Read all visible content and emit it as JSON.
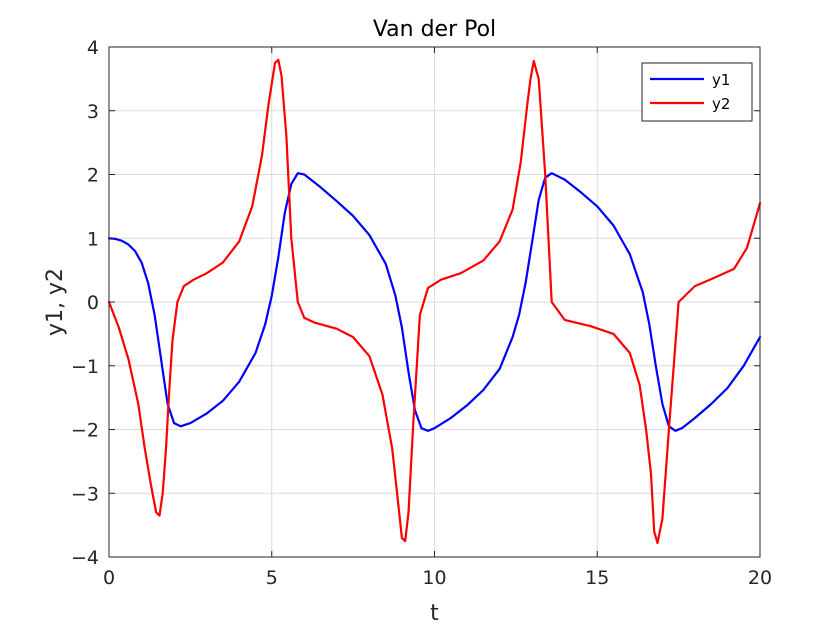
{
  "chart_data": {
    "type": "line",
    "title": "Van der Pol",
    "xlabel": "t",
    "ylabel": "y1, y2",
    "xlim": [
      0,
      20
    ],
    "ylim": [
      -4,
      4
    ],
    "xticks": [
      0,
      5,
      10,
      15,
      20
    ],
    "xtick_labels": [
      "0",
      "5",
      "10",
      "15",
      "20"
    ],
    "yticks": [
      -4,
      -3,
      -2,
      -1,
      0,
      1,
      2,
      3,
      4
    ],
    "ytick_labels": [
      "−4",
      "−3",
      "−2",
      "−1",
      "0",
      "1",
      "2",
      "3",
      "4"
    ],
    "grid": true,
    "legend_position": "top-right",
    "series": [
      {
        "name": "y1",
        "color": "#0000ff",
        "x": [
          0,
          0.2,
          0.4,
          0.6,
          0.8,
          1.0,
          1.2,
          1.4,
          1.6,
          1.8,
          2.0,
          2.2,
          2.5,
          3.0,
          3.5,
          4.0,
          4.5,
          4.8,
          5.0,
          5.2,
          5.4,
          5.6,
          5.8,
          6.0,
          6.5,
          7.0,
          7.5,
          8.0,
          8.5,
          8.8,
          9.0,
          9.2,
          9.4,
          9.6,
          9.8,
          10.0,
          10.5,
          11.0,
          11.5,
          12.0,
          12.4,
          12.6,
          12.8,
          13.0,
          13.2,
          13.4,
          13.6,
          14.0,
          14.5,
          15.0,
          15.5,
          16.0,
          16.4,
          16.6,
          16.8,
          17.0,
          17.2,
          17.4,
          17.6,
          18.0,
          18.5,
          19.0,
          19.5,
          20.0
        ],
        "y": [
          1.0,
          0.99,
          0.96,
          0.9,
          0.8,
          0.62,
          0.3,
          -0.2,
          -0.9,
          -1.6,
          -1.9,
          -1.95,
          -1.9,
          -1.75,
          -1.55,
          -1.25,
          -0.8,
          -0.35,
          0.1,
          0.7,
          1.4,
          1.85,
          2.02,
          2.0,
          1.8,
          1.58,
          1.35,
          1.05,
          0.6,
          0.1,
          -0.4,
          -1.1,
          -1.7,
          -1.98,
          -2.02,
          -1.98,
          -1.82,
          -1.62,
          -1.38,
          -1.05,
          -0.55,
          -0.2,
          0.3,
          0.95,
          1.6,
          1.95,
          2.02,
          1.92,
          1.72,
          1.5,
          1.2,
          0.75,
          0.15,
          -0.35,
          -1.0,
          -1.6,
          -1.95,
          -2.02,
          -1.98,
          -1.82,
          -1.6,
          -1.35,
          -1.0,
          -0.55
        ]
      },
      {
        "name": "y2",
        "color": "#ff0000",
        "x": [
          0,
          0.3,
          0.6,
          0.9,
          1.1,
          1.3,
          1.45,
          1.55,
          1.65,
          1.75,
          1.85,
          1.95,
          2.1,
          2.3,
          2.6,
          3.0,
          3.5,
          4.0,
          4.4,
          4.7,
          4.9,
          5.1,
          5.2,
          5.3,
          5.45,
          5.6,
          5.8,
          6.0,
          6.3,
          7.0,
          7.5,
          8.0,
          8.4,
          8.7,
          8.85,
          9.0,
          9.1,
          9.2,
          9.35,
          9.55,
          9.8,
          10.2,
          10.8,
          11.5,
          12.0,
          12.4,
          12.65,
          12.85,
          12.95,
          13.05,
          13.2,
          13.4,
          13.6,
          14.0,
          14.8,
          15.5,
          16.0,
          16.3,
          16.5,
          16.65,
          16.75,
          16.85,
          17.0,
          17.2,
          17.5,
          18.0,
          18.6,
          19.2,
          19.6,
          20.0
        ],
        "y": [
          0,
          -0.4,
          -0.9,
          -1.6,
          -2.3,
          -2.9,
          -3.3,
          -3.35,
          -3.0,
          -2.3,
          -1.4,
          -0.6,
          0.0,
          0.25,
          0.35,
          0.45,
          0.62,
          0.95,
          1.5,
          2.3,
          3.1,
          3.75,
          3.8,
          3.55,
          2.6,
          1.0,
          0.0,
          -0.25,
          -0.32,
          -0.42,
          -0.55,
          -0.85,
          -1.45,
          -2.3,
          -3.0,
          -3.7,
          -3.75,
          -3.3,
          -1.9,
          -0.2,
          0.22,
          0.35,
          0.45,
          0.65,
          0.95,
          1.45,
          2.2,
          3.1,
          3.5,
          3.78,
          3.5,
          2.0,
          0.0,
          -0.28,
          -0.38,
          -0.5,
          -0.8,
          -1.3,
          -2.0,
          -2.7,
          -3.6,
          -3.78,
          -3.4,
          -2.0,
          0.0,
          0.25,
          0.38,
          0.52,
          0.85,
          1.55
        ]
      }
    ]
  }
}
